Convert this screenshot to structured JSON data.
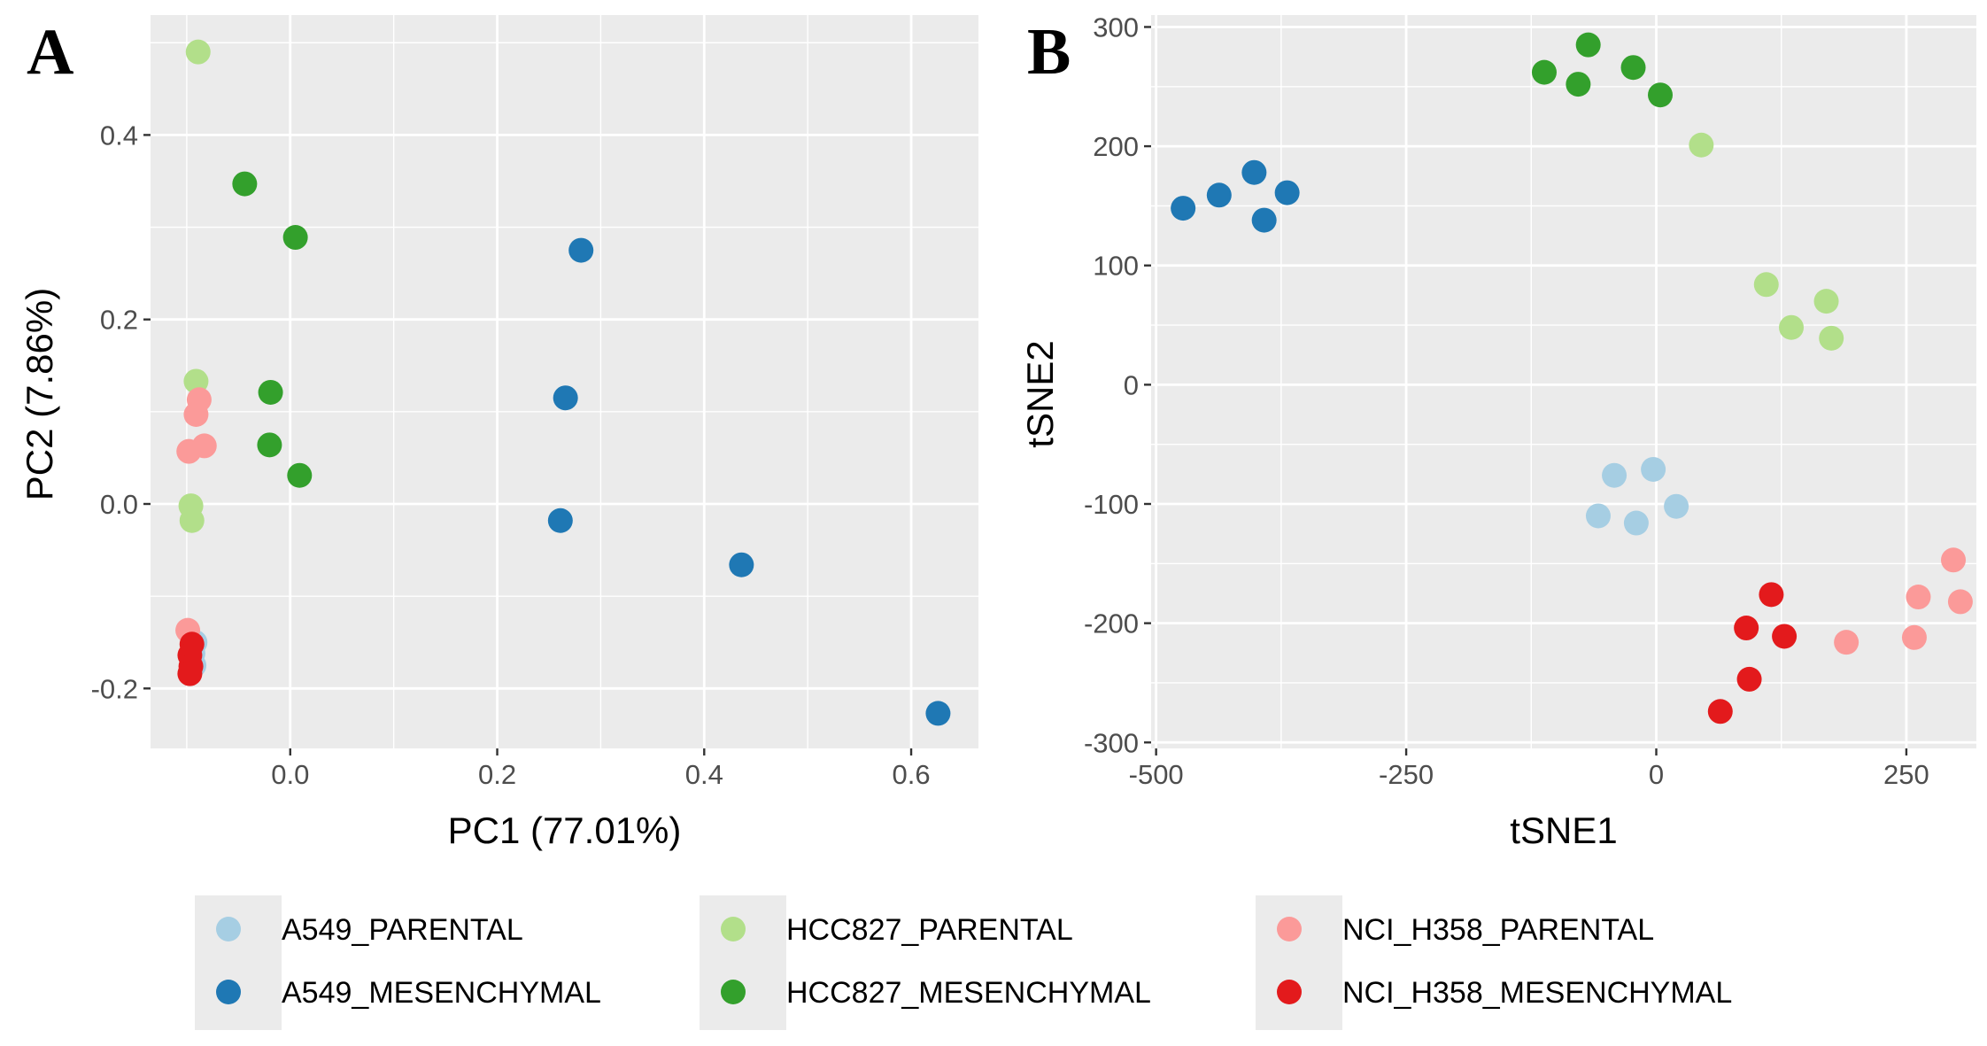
{
  "colors": {
    "A549_PARENTAL": "#a6cee3",
    "A549_MESENCHYMAL": "#1f78b4",
    "HCC827_PARENTAL": "#b2df8a",
    "HCC827_MESENCHYMAL": "#33a02c",
    "NCI_H358_PARENTAL": "#fb9a99",
    "NCI_H358_MESENCHYMAL": "#e31a1c",
    "panel_bg": "#ebebeb",
    "grid": "#ffffff"
  },
  "legend": [
    {
      "key": "A549_PARENTAL",
      "label": "A549_PARENTAL"
    },
    {
      "key": "A549_MESENCHYMAL",
      "label": "A549_MESENCHYMAL"
    },
    {
      "key": "HCC827_PARENTAL",
      "label": "HCC827_PARENTAL"
    },
    {
      "key": "HCC827_MESENCHYMAL",
      "label": "HCC827_MESENCHYMAL"
    },
    {
      "key": "NCI_H358_PARENTAL",
      "label": "NCI_H358_PARENTAL"
    },
    {
      "key": "NCI_H358_MESENCHYMAL",
      "label": "NCI_H358_MESENCHYMAL"
    }
  ],
  "chart_data": [
    {
      "type": "scatter",
      "panel_label": "A",
      "xlabel": "PC1 (77.01%)",
      "ylabel": "PC2 (7.86%)",
      "xlim": [
        -0.135,
        0.665
      ],
      "ylim": [
        -0.265,
        0.53
      ],
      "xticks": [
        0.0,
        0.2,
        0.4,
        0.6
      ],
      "xtick_labels": [
        "0.0",
        "0.2",
        "0.4",
        "0.6"
      ],
      "yticks": [
        -0.2,
        0.0,
        0.2,
        0.4
      ],
      "ytick_labels": [
        "-0.2",
        "0.0",
        "0.2",
        "0.4"
      ],
      "grid": true,
      "series": [
        {
          "key": "A549_PARENTAL",
          "name": "A549_PARENTAL",
          "points": [
            [
              -0.092,
              -0.15
            ],
            [
              -0.094,
              -0.162
            ],
            [
              -0.093,
              -0.175
            ]
          ]
        },
        {
          "key": "A549_MESENCHYMAL",
          "name": "A549_MESENCHYMAL",
          "points": [
            [
              0.281,
              0.275
            ],
            [
              0.266,
              0.115
            ],
            [
              0.261,
              -0.018
            ],
            [
              0.436,
              -0.066
            ],
            [
              0.626,
              -0.227
            ]
          ]
        },
        {
          "key": "HCC827_PARENTAL",
          "name": "HCC827_PARENTAL",
          "points": [
            [
              -0.089,
              0.49
            ],
            [
              -0.091,
              0.133
            ],
            [
              -0.096,
              -0.002
            ],
            [
              -0.095,
              -0.018
            ]
          ]
        },
        {
          "key": "HCC827_MESENCHYMAL",
          "name": "HCC827_MESENCHYMAL",
          "points": [
            [
              -0.044,
              0.347
            ],
            [
              0.005,
              0.289
            ],
            [
              -0.019,
              0.121
            ],
            [
              -0.02,
              0.064
            ],
            [
              0.009,
              0.031
            ]
          ]
        },
        {
          "key": "NCI_H358_PARENTAL",
          "name": "NCI_H358_PARENTAL",
          "points": [
            [
              -0.088,
              0.113
            ],
            [
              -0.091,
              0.097
            ],
            [
              -0.083,
              0.063
            ],
            [
              -0.098,
              0.057
            ],
            [
              -0.099,
              -0.137
            ]
          ]
        },
        {
          "key": "NCI_H358_MESENCHYMAL",
          "name": "NCI_H358_MESENCHYMAL",
          "points": [
            [
              -0.095,
              -0.152
            ],
            [
              -0.097,
              -0.164
            ],
            [
              -0.096,
              -0.176
            ],
            [
              -0.097,
              -0.184
            ]
          ]
        }
      ]
    },
    {
      "type": "scatter",
      "panel_label": "B",
      "xlabel": "tSNE1",
      "ylabel": "tSNE2",
      "xlim": [
        -505,
        320
      ],
      "ylim": [
        -305,
        310
      ],
      "xticks": [
        -500,
        -250,
        0,
        250
      ],
      "xtick_labels": [
        "-500",
        "-250",
        "0",
        "250"
      ],
      "yticks": [
        -300,
        -200,
        -100,
        0,
        100,
        200,
        300
      ],
      "ytick_labels": [
        "-300",
        "-200",
        "-100",
        "0",
        "100",
        "200",
        "300"
      ],
      "grid": true,
      "series": [
        {
          "key": "A549_PARENTAL",
          "name": "A549_PARENTAL",
          "points": [
            [
              -42,
              -76
            ],
            [
              -3,
              -71
            ],
            [
              -58,
              -110
            ],
            [
              -20,
              -116
            ],
            [
              20,
              -102
            ]
          ]
        },
        {
          "key": "A549_MESENCHYMAL",
          "name": "A549_MESENCHYMAL",
          "points": [
            [
              -473,
              148
            ],
            [
              -437,
              159
            ],
            [
              -402,
              178
            ],
            [
              -392,
              138
            ],
            [
              -369,
              161
            ]
          ]
        },
        {
          "key": "HCC827_PARENTAL",
          "name": "HCC827_PARENTAL",
          "points": [
            [
              45,
              201
            ],
            [
              110,
              84
            ],
            [
              170,
              70
            ],
            [
              135,
              48
            ],
            [
              175,
              39
            ]
          ]
        },
        {
          "key": "HCC827_MESENCHYMAL",
          "name": "HCC827_MESENCHYMAL",
          "points": [
            [
              -68,
              285
            ],
            [
              -112,
              262
            ],
            [
              -78,
              252
            ],
            [
              -23,
              266
            ],
            [
              4,
              243
            ]
          ]
        },
        {
          "key": "NCI_H358_PARENTAL",
          "name": "NCI_H358_PARENTAL",
          "points": [
            [
              297,
              -147
            ],
            [
              262,
              -178
            ],
            [
              304,
              -182
            ],
            [
              190,
              -216
            ],
            [
              258,
              -212
            ]
          ]
        },
        {
          "key": "NCI_H358_MESENCHYMAL",
          "name": "NCI_H358_MESENCHYMAL",
          "points": [
            [
              115,
              -176
            ],
            [
              90,
              -204
            ],
            [
              128,
              -211
            ],
            [
              93,
              -247
            ],
            [
              64,
              -274
            ]
          ]
        }
      ]
    }
  ]
}
